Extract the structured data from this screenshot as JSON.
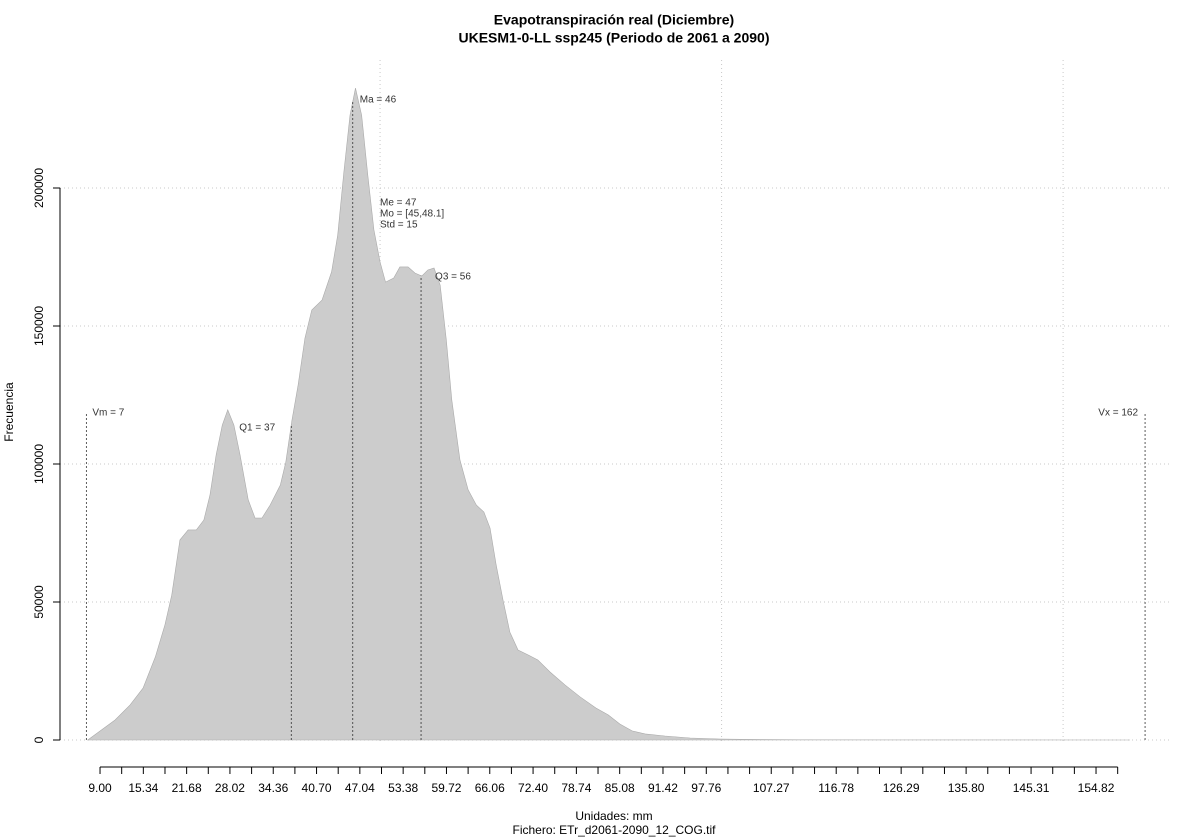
{
  "chart_data": {
    "type": "area",
    "title": "Evapotranspiración real (Diciembre)",
    "subtitle": "UKESM1-0-LL ssp245 (Periodo de 2061 a 2090)",
    "x_label": "Unidades: mm",
    "source": "Fichero: ETr_d2061-2090_12_COG.tif",
    "y_label": "Frecuencia",
    "color": "#cccccc",
    "x": [
      7.2,
      9,
      11.2,
      13.4,
      15.3,
      17.1,
      18.5,
      19.5,
      20.7,
      21.9,
      23.1,
      24.2,
      25.1,
      26.0,
      26.9,
      27.7,
      28.6,
      29.5,
      30.7,
      31.7,
      32.7,
      33.9,
      35.4,
      36.2,
      37.1,
      38.0,
      39.0,
      40.0,
      41.5,
      42.9,
      43.8,
      44.7,
      45.6,
      46.4,
      47.3,
      48.2,
      49.1,
      50.0,
      50.8,
      52.0,
      52.9,
      54.1,
      55.1,
      56.1,
      57.0,
      57.9,
      58.8,
      59.7,
      60.5,
      61.7,
      62.9,
      64.1,
      65.2,
      66.1,
      67.0,
      68.0,
      69.0,
      70.2,
      71.7,
      73.1,
      74.9,
      77.1,
      79.3,
      81.6,
      83.4,
      85.1,
      86.9,
      88.8,
      91.7,
      95.4,
      99.8,
      105.6,
      111.5,
      126.1,
      140.8,
      159.8
    ],
    "values": [
      0,
      3260,
      7250,
      12700,
      18800,
      30100,
      41700,
      52500,
      72500,
      76100,
      76100,
      79700,
      88800,
      103300,
      114100,
      119600,
      114100,
      103300,
      87000,
      80400,
      80400,
      85100,
      92400,
      100700,
      115900,
      128600,
      145600,
      155800,
      159400,
      169600,
      183000,
      205800,
      226400,
      236200,
      226400,
      204700,
      184800,
      173200,
      165900,
      167400,
      171400,
      171400,
      169200,
      168100,
      170300,
      171000,
      164800,
      144900,
      123200,
      101400,
      90600,
      85100,
      82600,
      76800,
      63400,
      50700,
      39100,
      32600,
      30800,
      29000,
      24600,
      19900,
      15600,
      11600,
      9100,
      5800,
      3300,
      2200,
      1450,
      720,
      360,
      180,
      80,
      30,
      10,
      0
    ],
    "xlim": [
      3.14,
      165.65
    ],
    "ylim": [
      -10145,
      246377
    ],
    "xticks": [
      {
        "value": 9,
        "label": "9.00"
      },
      15.34,
      21.68,
      28.02,
      34.36,
      {
        "value": 40.7,
        "label": "40.70"
      },
      47.04,
      53.38,
      59.72,
      66.06,
      {
        "value": 72.4,
        "label": "72.40"
      },
      78.74,
      85.08,
      91.42,
      97.76,
      107.27,
      116.78,
      126.29,
      {
        "value": 135.8,
        "label": "135.80"
      },
      145.31,
      154.82
    ],
    "xticks_minor": [
      12.17,
      18.51,
      24.85,
      31.19,
      37.53,
      43.87,
      50.21,
      56.55,
      62.89,
      69.23,
      75.57,
      81.91,
      88.25,
      94.59,
      100.93,
      104.1,
      110.44,
      113.61,
      119.95,
      123.12,
      129.46,
      132.63,
      138.97,
      142.14,
      148.48,
      151.65,
      157.99
    ],
    "yticks": [
      0,
      50000,
      100000,
      150000,
      200000
    ],
    "xgrid": [
      50,
      100,
      150
    ],
    "grid": true,
    "markers": [
      {
        "label": "Vm = 7",
        "value": 7
      },
      {
        "label": "Q1 = 37",
        "value": 37
      },
      {
        "label": "Ma = 46",
        "value": 46
      },
      {
        "label": "Q3 = 56",
        "value": 56
      },
      {
        "label": "Vx = 162",
        "value": 162
      }
    ],
    "stats_text": [
      "Me = 47",
      "Mo = [45,48.1]",
      "Std = 15"
    ]
  }
}
